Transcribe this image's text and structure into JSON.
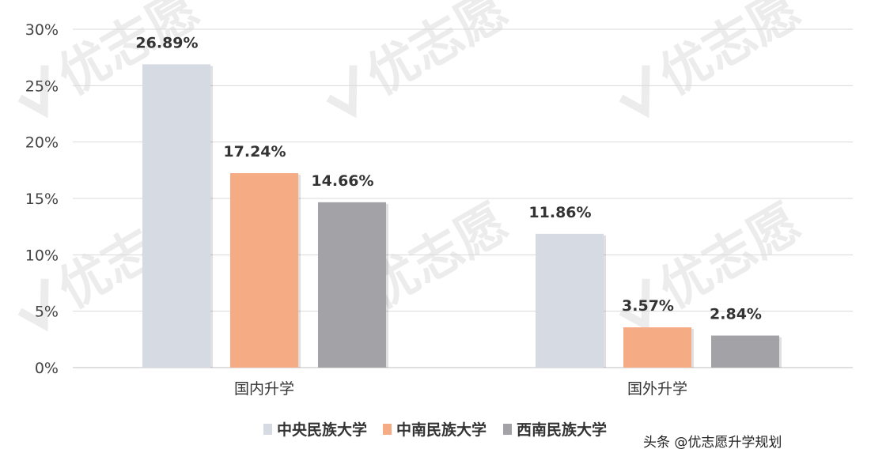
{
  "chart_data": {
    "type": "bar",
    "categories": [
      "国内升学",
      "国外升学"
    ],
    "series": [
      {
        "name": "中央民族大学",
        "values": [
          26.89,
          11.86
        ],
        "color": "#d5dae3"
      },
      {
        "name": "中南民族大学",
        "values": [
          17.24,
          3.57
        ],
        "color": "#f5ab84"
      },
      {
        "name": "西南民族大学",
        "values": [
          14.66,
          2.84
        ],
        "color": "#a3a2a6"
      }
    ],
    "data_labels": [
      [
        "26.89%",
        "11.86%"
      ],
      [
        "17.24%",
        "3.57%"
      ],
      [
        "14.66%",
        "2.84%"
      ]
    ],
    "y_ticks": [
      "0%",
      "5%",
      "10%",
      "15%",
      "20%",
      "25%",
      "30%"
    ],
    "y_tick_values": [
      0,
      5,
      10,
      15,
      20,
      25,
      30
    ],
    "ylim": [
      0,
      30
    ],
    "grid": true,
    "legend_position": "bottom"
  },
  "watermark": {
    "logo_text": "优志愿",
    "credit_text": "头条 @优志愿升学规划"
  },
  "colors": {
    "gridline": "#d9d9d9",
    "axis": "#bfbfbf"
  }
}
